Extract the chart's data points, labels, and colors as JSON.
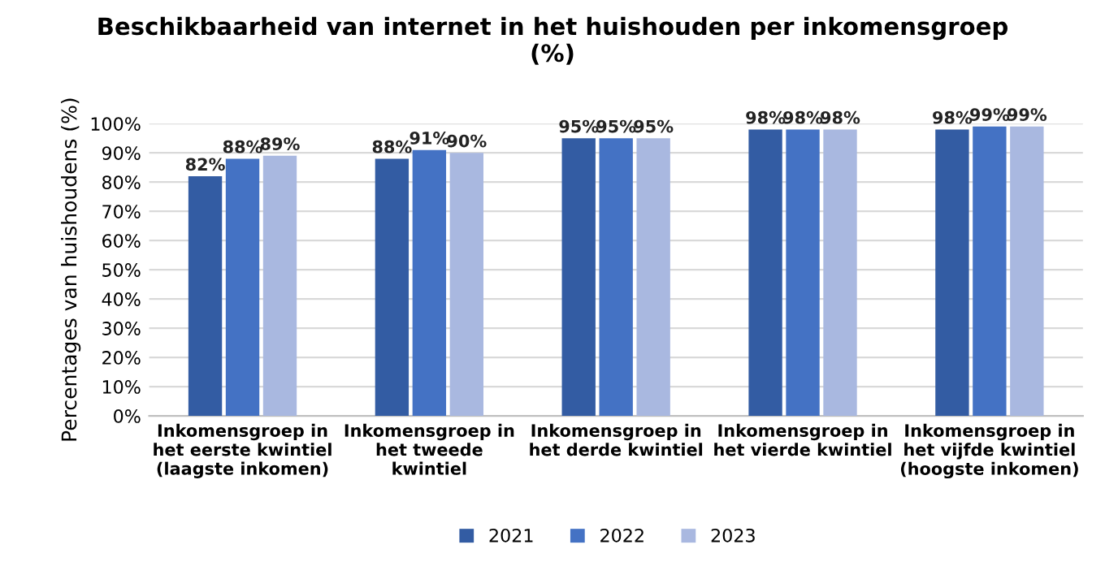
{
  "chart_data": {
    "type": "bar",
    "title": "Beschikbaarheid van internet in het huishouden per inkomensgroep\n(%)",
    "ylabel": "Percentages van huishoudens (%)",
    "categories": [
      "Inkomensgroep in\nhet eerste kwintiel\n(laagste inkomen)",
      "Inkomensgroep in\nhet tweede\nkwintiel",
      "Inkomensgroep in\nhet derde kwintiel",
      "Inkomensgroep in\nhet vierde kwintiel",
      "Inkomensgroep in\nhet vijfde kwintiel\n(hoogste inkomen)"
    ],
    "series": [
      {
        "name": "2021",
        "color": "#335ca3",
        "values": [
          82,
          88,
          95,
          98,
          98
        ],
        "value_labels": [
          "82%",
          "88%",
          "95%",
          "98%",
          "98%"
        ]
      },
      {
        "name": "2022",
        "color": "#4472c4",
        "values": [
          88,
          91,
          95,
          98,
          99
        ],
        "value_labels": [
          "88%",
          "91%",
          "95%",
          "98%",
          "99%"
        ]
      },
      {
        "name": "2023",
        "color": "#a9b8e0",
        "values": [
          89,
          90,
          95,
          98,
          99
        ],
        "value_labels": [
          "89%",
          "90%",
          "95%",
          "98%",
          "99%"
        ]
      }
    ],
    "ylim": [
      0,
      100
    ],
    "yticks": [
      {
        "value": 0,
        "label": "0%"
      },
      {
        "value": 10,
        "label": "10%"
      },
      {
        "value": 20,
        "label": "20%"
      },
      {
        "value": 30,
        "label": "30%"
      },
      {
        "value": 40,
        "label": "40%"
      },
      {
        "value": 50,
        "label": "50%"
      },
      {
        "value": 60,
        "label": "60%"
      },
      {
        "value": 70,
        "label": "70%"
      },
      {
        "value": 80,
        "label": "80%"
      },
      {
        "value": 90,
        "label": "90%"
      },
      {
        "value": 100,
        "label": "100%"
      }
    ],
    "grid": "y",
    "legend": "bottom"
  }
}
